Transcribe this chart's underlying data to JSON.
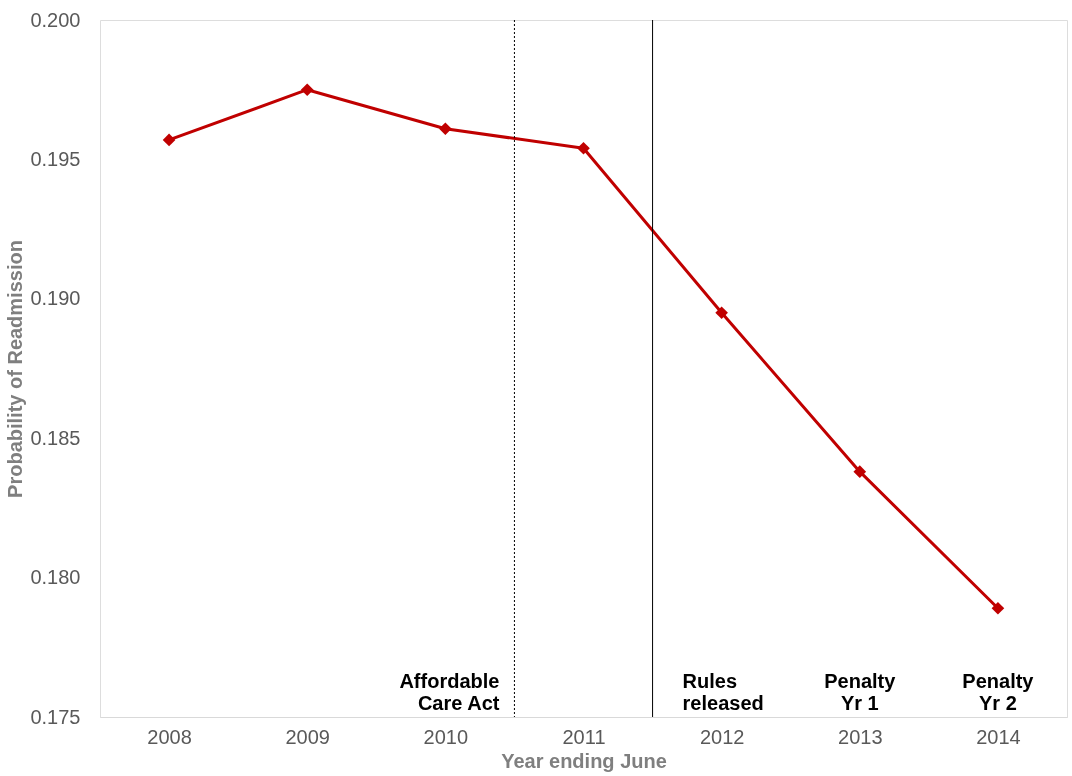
{
  "chart_data": {
    "type": "line",
    "xlabel": "Year ending June",
    "ylabel": "Probability of Readmission",
    "x": [
      2008,
      2009,
      2010,
      2011,
      2012,
      2013,
      2014
    ],
    "series": [
      {
        "color": "#c00000",
        "values": [
          0.1957,
          0.1975,
          0.1961,
          0.1954,
          0.1895,
          0.1838,
          0.1789
        ]
      }
    ],
    "xlim": [
      2007.5,
      2014.5
    ],
    "xticks": [
      2008,
      2009,
      2010,
      2011,
      2012,
      2013,
      2014
    ],
    "ylim": [
      0.175,
      0.2
    ],
    "yticks": [
      0.175,
      {
        "value": 0.18,
        "label": "0.180"
      },
      0.185,
      {
        "value": 0.19,
        "label": "0.190"
      },
      0.195,
      {
        "value": 0.2,
        "label": "0.200"
      }
    ],
    "ref_lines": [
      {
        "axis": "x",
        "value": 2010.5,
        "label": "Affordable\nCare Act",
        "color": "#000000",
        "line_style": "dotted"
      },
      {
        "axis": "x",
        "value": 2011.5,
        "label": "Rules\nreleased",
        "color": "#000000",
        "line_style": "solid"
      }
    ],
    "annotations": [
      "Penalty\nYr 1",
      "Penalty\nYr 2"
    ],
    "marker": "diamond",
    "line_style": "solid",
    "grid": false
  }
}
